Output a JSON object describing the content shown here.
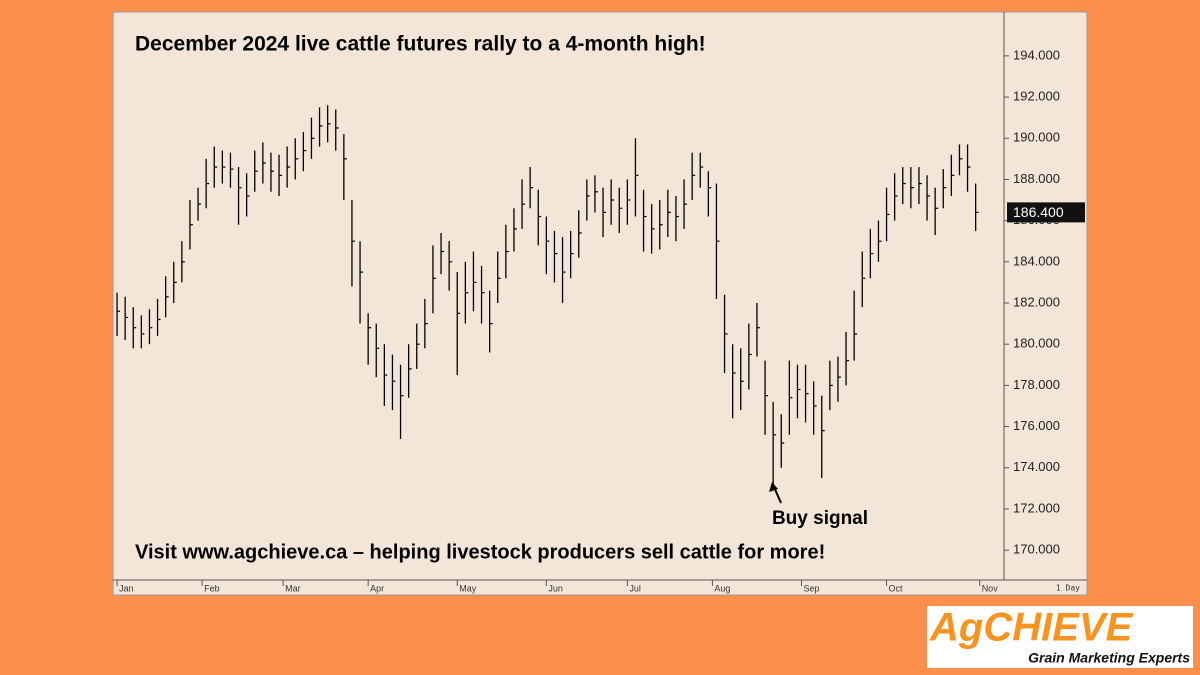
{
  "chart_data": {
    "type": "ohlc",
    "title": "December 2024 live cattle futures rally to a 4-month high!",
    "footer": "Visit www.agchieve.ca – helping livestock producers sell cattle for more!",
    "annotation": "Buy signal",
    "interval": "1 Day",
    "color": "#000000",
    "x": [
      0,
      2,
      4,
      6,
      8,
      10,
      12,
      14,
      16,
      18,
      20,
      22,
      24,
      26,
      28,
      30,
      32,
      34,
      36,
      38,
      40,
      42,
      44,
      46,
      48,
      50,
      52,
      54,
      56,
      58,
      60,
      62,
      64,
      66,
      68,
      70,
      72,
      74,
      76,
      78,
      80,
      82,
      84,
      86,
      88,
      90,
      92,
      94,
      96,
      98,
      100,
      102,
      104,
      106,
      108,
      110,
      112,
      114,
      116,
      118,
      120,
      122,
      124,
      126,
      128,
      130,
      132,
      134,
      136,
      138,
      140,
      142,
      144,
      146,
      148,
      150,
      152,
      154,
      156,
      158,
      160,
      162,
      164,
      166,
      168,
      170,
      172,
      174,
      176,
      178,
      180,
      182,
      184,
      186,
      188,
      190,
      192,
      194,
      196,
      198,
      200,
      202,
      204,
      206,
      208,
      210,
      212
    ],
    "high": [
      182.5,
      182.3,
      181.8,
      181.4,
      181.7,
      182.2,
      183.3,
      184,
      185,
      187,
      187.6,
      189,
      189.6,
      189.4,
      189.3,
      188.6,
      188.3,
      189.4,
      189.8,
      189.3,
      189.2,
      189.6,
      190,
      190.3,
      191,
      191.5,
      191.6,
      191.4,
      190.2,
      187,
      185,
      181.5,
      181,
      180,
      179.5,
      179,
      180,
      181,
      182.2,
      184.8,
      185.4,
      185,
      183.5,
      184,
      184.5,
      183.8,
      182.6,
      184.5,
      185.8,
      186.6,
      188,
      188.6,
      187.5,
      186.2,
      185.5,
      185.2,
      185.5,
      186.5,
      188,
      188.2,
      187.6,
      188,
      187.6,
      188,
      190,
      187.5,
      186.8,
      187,
      187.5,
      187.2,
      188,
      189.3,
      189.3,
      188.4,
      187.8,
      182.4,
      180,
      179.8,
      181,
      182,
      179.2,
      177.2,
      176.6,
      179.2,
      179,
      179,
      178.2,
      177.5,
      179.2,
      179.4,
      180.6,
      182.6,
      184.5,
      185.6,
      186,
      187.6,
      188.3,
      188.6,
      188.6,
      188.6,
      188.2,
      187.6,
      188.5,
      189.2,
      189.7,
      189.7,
      187.8
    ],
    "low": [
      180.4,
      180.2,
      179.8,
      179.8,
      180,
      180.4,
      181.3,
      182,
      183,
      184.6,
      186,
      186.6,
      187.6,
      187.8,
      187.6,
      185.8,
      186.2,
      187.4,
      187.8,
      187.4,
      187.2,
      187.6,
      188,
      188.4,
      189,
      189.6,
      189.8,
      189.4,
      187,
      182.8,
      181,
      179,
      178.4,
      177,
      176.8,
      175.4,
      177.4,
      178.8,
      179.8,
      181.5,
      183.4,
      182.6,
      178.5,
      181,
      181.6,
      181,
      179.6,
      182,
      183.2,
      184.5,
      185.6,
      186.6,
      184.8,
      183.4,
      183,
      182,
      183.2,
      184.2,
      186,
      186.4,
      185.2,
      185.8,
      185.4,
      185.8,
      186.2,
      184.5,
      184.4,
      184.6,
      185.2,
      185,
      185.6,
      187,
      187.6,
      186.2,
      182.2,
      178.6,
      176.4,
      176.8,
      177.8,
      179.4,
      175.6,
      173.2,
      174,
      175.6,
      176.4,
      176.2,
      175.6,
      173.5,
      176.8,
      177.2,
      178,
      179.2,
      181.8,
      183.2,
      184,
      185,
      186,
      186.8,
      186.6,
      186.8,
      186,
      185.3,
      186.6,
      187.2,
      188.2,
      187.4,
      185.5
    ],
    "close": [
      181.6,
      181.3,
      180.8,
      180.5,
      180.8,
      181.2,
      182.3,
      183,
      184,
      185.8,
      186.8,
      187.8,
      188.6,
      188.6,
      188.5,
      187.6,
      187.2,
      188.4,
      188.8,
      188.4,
      188.2,
      188.6,
      189,
      189.4,
      190,
      190.6,
      190.7,
      190.5,
      189,
      185,
      183.5,
      180.8,
      179.8,
      178.5,
      178.2,
      177.5,
      178.8,
      180,
      181,
      183.2,
      184.5,
      184,
      181.5,
      182.5,
      183,
      182.5,
      181,
      183.2,
      184.5,
      185.6,
      186.8,
      187.6,
      186.2,
      185,
      184.4,
      183.5,
      184.4,
      185.4,
      187.2,
      187.4,
      186.4,
      187,
      186.6,
      187,
      188.2,
      186.2,
      185.6,
      185.8,
      186.4,
      186.2,
      186.8,
      188.2,
      188.6,
      187.6,
      185,
      180.5,
      178.6,
      178.2,
      179.5,
      180.8,
      177.5,
      175.6,
      175.2,
      177.4,
      177.8,
      177.6,
      177,
      175.8,
      178,
      178.4,
      179.2,
      180.5,
      183.2,
      184.4,
      185,
      186.3,
      187.2,
      187.8,
      187.6,
      187.8,
      187.2,
      186.6,
      187.6,
      188.2,
      189,
      188.6,
      186.4
    ],
    "last_price": {
      "value": 186.4,
      "label": "186.400"
    },
    "xlim": [
      -1,
      219
    ],
    "xticks": [
      {
        "value": 0,
        "label": "Jan"
      },
      {
        "value": 21,
        "label": "Feb"
      },
      {
        "value": 41,
        "label": "Mar"
      },
      {
        "value": 62,
        "label": "Apr"
      },
      {
        "value": 84,
        "label": "May"
      },
      {
        "value": 106,
        "label": "Jun"
      },
      {
        "value": 126,
        "label": "Jul"
      },
      {
        "value": 147,
        "label": "Aug"
      },
      {
        "value": 169,
        "label": "Sep"
      },
      {
        "value": 190,
        "label": "Oct"
      },
      {
        "value": 213,
        "label": "Nov"
      }
    ],
    "ylim": [
      168.55,
      196.13
    ],
    "yticks": [
      {
        "value": 170,
        "label": "170.000"
      },
      {
        "value": 172,
        "label": "172.000"
      },
      {
        "value": 174,
        "label": "174.000"
      },
      {
        "value": 176,
        "label": "176.000"
      },
      {
        "value": 178,
        "label": "178.000"
      },
      {
        "value": 180,
        "label": "180.000"
      },
      {
        "value": 182,
        "label": "182.000"
      },
      {
        "value": 184,
        "label": "184.000"
      },
      {
        "value": 186,
        "label": "186.000"
      },
      {
        "value": 188,
        "label": "188.000"
      },
      {
        "value": 190,
        "label": "190.000"
      },
      {
        "value": 192,
        "label": "192.000"
      },
      {
        "value": 194,
        "label": "194.000"
      }
    ]
  },
  "logo": {
    "name": "AgCHIEVE",
    "tagline": "Grain Marketing Experts"
  }
}
